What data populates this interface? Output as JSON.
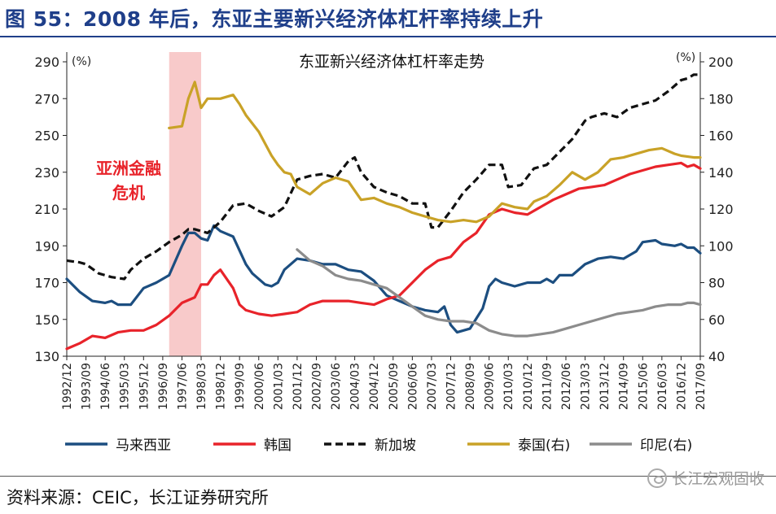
{
  "figure": {
    "title": "图 55：2008 年后，东亚主要新兴经济体杠杆率持续上升",
    "source": "资料来源：CEIC，长江证券研究所",
    "watermark": "长江宏观固收"
  },
  "chart_data": {
    "type": "line",
    "title": "东亚新兴经济体杠杆率走势",
    "left_unit": "(%)",
    "right_unit": "(%)",
    "left_ylim": [
      130,
      290
    ],
    "left_ticks": [
      130,
      150,
      170,
      190,
      210,
      230,
      250,
      270,
      290
    ],
    "right_ylim": [
      40,
      200
    ],
    "right_ticks": [
      40,
      60,
      80,
      100,
      120,
      140,
      160,
      180,
      200
    ],
    "x_range": [
      "1992/12",
      "2017/09"
    ],
    "x_tick_labels": [
      "1992/12",
      "1993/09",
      "1994/06",
      "1995/03",
      "1995/12",
      "1996/09",
      "1997/06",
      "1998/03",
      "1998/12",
      "1999/09",
      "2000/06",
      "2001/03",
      "2001/12",
      "2002/09",
      "2003/06",
      "2004/03",
      "2004/12",
      "2005/09",
      "2006/06",
      "2007/03",
      "2007/12",
      "2008/09",
      "2009/06",
      "2010/03",
      "2010/12",
      "2011/09",
      "2012/06",
      "2013/03",
      "2013/12",
      "2014/09",
      "2015/06",
      "2016/03",
      "2016/12",
      "2017/09"
    ],
    "annotation": {
      "text_lines": [
        "亚洲金融",
        "危机"
      ],
      "color": "#e8232a",
      "shade_range": [
        "1996/12",
        "1998/03"
      ],
      "shade_color": "#f6b8b8"
    },
    "legend_position": "bottom",
    "grid": false,
    "series": [
      {
        "name": "马来西亚",
        "axis": "left",
        "color": "#1c4e80",
        "dash": "solid",
        "points": [
          [
            "1992/12",
            172
          ],
          [
            "1993/06",
            165
          ],
          [
            "1993/12",
            160
          ],
          [
            "1994/06",
            159
          ],
          [
            "1994/09",
            160
          ],
          [
            "1994/12",
            158
          ],
          [
            "1995/06",
            158
          ],
          [
            "1995/12",
            167
          ],
          [
            "1996/06",
            170
          ],
          [
            "1996/12",
            174
          ],
          [
            "1997/06",
            190
          ],
          [
            "1997/09",
            197
          ],
          [
            "1997/12",
            197
          ],
          [
            "1998/03",
            194
          ],
          [
            "1998/06",
            193
          ],
          [
            "1998/09",
            201
          ],
          [
            "1998/12",
            198
          ],
          [
            "1999/06",
            195
          ],
          [
            "1999/12",
            180
          ],
          [
            "2000/03",
            175
          ],
          [
            "2000/09",
            169
          ],
          [
            "2000/12",
            168
          ],
          [
            "2001/03",
            170
          ],
          [
            "2001/06",
            177
          ],
          [
            "2001/12",
            183
          ],
          [
            "2002/06",
            182
          ],
          [
            "2002/12",
            180
          ],
          [
            "2003/06",
            180
          ],
          [
            "2003/12",
            177
          ],
          [
            "2004/06",
            176
          ],
          [
            "2004/12",
            171
          ],
          [
            "2005/06",
            163
          ],
          [
            "2005/12",
            160
          ],
          [
            "2006/06",
            157
          ],
          [
            "2006/12",
            155
          ],
          [
            "2007/06",
            154
          ],
          [
            "2007/09",
            157
          ],
          [
            "2007/12",
            147
          ],
          [
            "2008/03",
            143
          ],
          [
            "2008/09",
            145
          ],
          [
            "2009/03",
            156
          ],
          [
            "2009/06",
            168
          ],
          [
            "2009/09",
            172
          ],
          [
            "2009/12",
            170
          ],
          [
            "2010/06",
            168
          ],
          [
            "2010/12",
            170
          ],
          [
            "2011/06",
            170
          ],
          [
            "2011/09",
            172
          ],
          [
            "2011/12",
            170
          ],
          [
            "2012/03",
            174
          ],
          [
            "2012/09",
            174
          ],
          [
            "2013/03",
            180
          ],
          [
            "2013/09",
            183
          ],
          [
            "2014/03",
            184
          ],
          [
            "2014/09",
            183
          ],
          [
            "2015/03",
            187
          ],
          [
            "2015/06",
            192
          ],
          [
            "2015/12",
            193
          ],
          [
            "2016/03",
            191
          ],
          [
            "2016/09",
            190
          ],
          [
            "2016/12",
            191
          ],
          [
            "2017/03",
            189
          ],
          [
            "2017/06",
            189
          ],
          [
            "2017/09",
            186
          ]
        ]
      },
      {
        "name": "韩国",
        "axis": "left",
        "color": "#e8232a",
        "dash": "solid",
        "points": [
          [
            "1992/12",
            134
          ],
          [
            "1993/06",
            137
          ],
          [
            "1993/12",
            141
          ],
          [
            "1994/06",
            140
          ],
          [
            "1994/12",
            143
          ],
          [
            "1995/06",
            144
          ],
          [
            "1995/12",
            144
          ],
          [
            "1996/06",
            147
          ],
          [
            "1996/12",
            152
          ],
          [
            "1997/06",
            159
          ],
          [
            "1997/12",
            162
          ],
          [
            "1998/03",
            169
          ],
          [
            "1998/06",
            169
          ],
          [
            "1998/09",
            174
          ],
          [
            "1998/12",
            177
          ],
          [
            "1999/06",
            167
          ],
          [
            "1999/09",
            158
          ],
          [
            "1999/12",
            155
          ],
          [
            "2000/06",
            153
          ],
          [
            "2000/12",
            152
          ],
          [
            "2001/06",
            153
          ],
          [
            "2001/12",
            154
          ],
          [
            "2002/06",
            158
          ],
          [
            "2002/12",
            160
          ],
          [
            "2003/06",
            160
          ],
          [
            "2003/12",
            160
          ],
          [
            "2004/06",
            159
          ],
          [
            "2004/12",
            158
          ],
          [
            "2005/06",
            161
          ],
          [
            "2005/12",
            163
          ],
          [
            "2006/06",
            170
          ],
          [
            "2006/12",
            177
          ],
          [
            "2007/06",
            182
          ],
          [
            "2007/12",
            184
          ],
          [
            "2008/06",
            192
          ],
          [
            "2008/12",
            197
          ],
          [
            "2009/06",
            207
          ],
          [
            "2009/12",
            210
          ],
          [
            "2010/06",
            208
          ],
          [
            "2010/12",
            207
          ],
          [
            "2011/06",
            211
          ],
          [
            "2011/12",
            215
          ],
          [
            "2012/06",
            218
          ],
          [
            "2012/12",
            221
          ],
          [
            "2013/06",
            222
          ],
          [
            "2013/12",
            223
          ],
          [
            "2014/06",
            226
          ],
          [
            "2014/12",
            229
          ],
          [
            "2015/06",
            231
          ],
          [
            "2015/12",
            233
          ],
          [
            "2016/06",
            234
          ],
          [
            "2016/12",
            235
          ],
          [
            "2017/03",
            233
          ],
          [
            "2017/06",
            234
          ],
          [
            "2017/09",
            232
          ]
        ]
      },
      {
        "name": "新加坡",
        "axis": "left",
        "color": "#111111",
        "dash": "dashed",
        "points": [
          [
            "1992/12",
            182
          ],
          [
            "1993/06",
            181
          ],
          [
            "1993/09",
            180
          ],
          [
            "1994/03",
            175
          ],
          [
            "1994/09",
            173
          ],
          [
            "1995/03",
            172
          ],
          [
            "1995/06",
            177
          ],
          [
            "1995/12",
            183
          ],
          [
            "1996/06",
            187
          ],
          [
            "1996/12",
            192
          ],
          [
            "1997/06",
            196
          ],
          [
            "1997/09",
            199
          ],
          [
            "1997/12",
            199
          ],
          [
            "1998/06",
            197
          ],
          [
            "1998/12",
            203
          ],
          [
            "1999/06",
            212
          ],
          [
            "1999/12",
            213
          ],
          [
            "2000/06",
            209
          ],
          [
            "2000/12",
            206
          ],
          [
            "2001/06",
            211
          ],
          [
            "2001/12",
            226
          ],
          [
            "2002/06",
            228
          ],
          [
            "2002/12",
            229
          ],
          [
            "2003/06",
            227
          ],
          [
            "2003/12",
            236
          ],
          [
            "2004/03",
            238
          ],
          [
            "2004/06",
            230
          ],
          [
            "2004/12",
            222
          ],
          [
            "2005/06",
            219
          ],
          [
            "2005/12",
            217
          ],
          [
            "2006/06",
            213
          ],
          [
            "2006/12",
            213
          ],
          [
            "2007/03",
            200
          ],
          [
            "2007/06",
            200
          ],
          [
            "2007/12",
            209
          ],
          [
            "2008/06",
            219
          ],
          [
            "2008/12",
            226
          ],
          [
            "2009/06",
            234
          ],
          [
            "2009/12",
            234
          ],
          [
            "2010/03",
            222
          ],
          [
            "2010/09",
            223
          ],
          [
            "2011/03",
            232
          ],
          [
            "2011/09",
            234
          ],
          [
            "2012/03",
            241
          ],
          [
            "2012/09",
            248
          ],
          [
            "2013/03",
            258
          ],
          [
            "2013/06",
            260
          ],
          [
            "2013/12",
            262
          ],
          [
            "2014/06",
            260
          ],
          [
            "2014/12",
            265
          ],
          [
            "2015/06",
            267
          ],
          [
            "2015/12",
            269
          ],
          [
            "2016/06",
            274
          ],
          [
            "2016/12",
            280
          ],
          [
            "2017/03",
            281
          ],
          [
            "2017/06",
            283
          ],
          [
            "2017/09",
            283
          ]
        ]
      },
      {
        "name": "泰国(右)",
        "axis": "right",
        "color": "#c9a227",
        "dash": "solid",
        "points": [
          [
            "1996/12",
            164
          ],
          [
            "1997/06",
            165
          ],
          [
            "1997/09",
            180
          ],
          [
            "1997/12",
            189
          ],
          [
            "1998/03",
            175
          ],
          [
            "1998/06",
            180
          ],
          [
            "1998/12",
            180
          ],
          [
            "1999/06",
            182
          ],
          [
            "1999/09",
            177
          ],
          [
            "1999/12",
            171
          ],
          [
            "2000/06",
            162
          ],
          [
            "2000/12",
            149
          ],
          [
            "2001/03",
            144
          ],
          [
            "2001/06",
            140
          ],
          [
            "2001/09",
            139
          ],
          [
            "2001/12",
            132
          ],
          [
            "2002/06",
            128
          ],
          [
            "2002/12",
            134
          ],
          [
            "2003/06",
            137
          ],
          [
            "2003/12",
            135
          ],
          [
            "2004/06",
            125
          ],
          [
            "2004/12",
            126
          ],
          [
            "2005/06",
            123
          ],
          [
            "2005/12",
            121
          ],
          [
            "2006/06",
            118
          ],
          [
            "2006/12",
            116
          ],
          [
            "2007/06",
            114
          ],
          [
            "2007/12",
            113
          ],
          [
            "2008/06",
            114
          ],
          [
            "2008/12",
            113
          ],
          [
            "2009/06",
            116
          ],
          [
            "2009/12",
            123
          ],
          [
            "2010/06",
            121
          ],
          [
            "2010/12",
            120
          ],
          [
            "2011/03",
            124
          ],
          [
            "2011/09",
            127
          ],
          [
            "2012/03",
            133
          ],
          [
            "2012/09",
            140
          ],
          [
            "2013/03",
            136
          ],
          [
            "2013/09",
            140
          ],
          [
            "2014/03",
            147
          ],
          [
            "2014/09",
            148
          ],
          [
            "2015/03",
            150
          ],
          [
            "2015/09",
            152
          ],
          [
            "2016/03",
            153
          ],
          [
            "2016/09",
            150
          ],
          [
            "2016/12",
            149
          ],
          [
            "2017/06",
            148
          ],
          [
            "2017/09",
            148
          ]
        ]
      },
      {
        "name": "印尼(右)",
        "axis": "right",
        "color": "#8c8c8c",
        "dash": "solid",
        "points": [
          [
            "2001/12",
            98
          ],
          [
            "2002/06",
            92
          ],
          [
            "2002/12",
            89
          ],
          [
            "2003/06",
            84
          ],
          [
            "2003/12",
            82
          ],
          [
            "2004/06",
            81
          ],
          [
            "2004/12",
            79
          ],
          [
            "2005/06",
            77
          ],
          [
            "2005/12",
            72
          ],
          [
            "2006/06",
            67
          ],
          [
            "2006/12",
            62
          ],
          [
            "2007/06",
            60
          ],
          [
            "2007/12",
            59
          ],
          [
            "2008/06",
            59
          ],
          [
            "2008/12",
            58
          ],
          [
            "2009/06",
            54
          ],
          [
            "2009/12",
            52
          ],
          [
            "2010/06",
            51
          ],
          [
            "2010/12",
            51
          ],
          [
            "2011/06",
            52
          ],
          [
            "2011/12",
            53
          ],
          [
            "2012/06",
            55
          ],
          [
            "2012/12",
            57
          ],
          [
            "2013/06",
            59
          ],
          [
            "2013/12",
            61
          ],
          [
            "2014/06",
            63
          ],
          [
            "2014/12",
            64
          ],
          [
            "2015/06",
            65
          ],
          [
            "2015/12",
            67
          ],
          [
            "2016/06",
            68
          ],
          [
            "2016/12",
            68
          ],
          [
            "2017/03",
            69
          ],
          [
            "2017/06",
            69
          ],
          [
            "2017/09",
            68
          ]
        ]
      }
    ]
  }
}
